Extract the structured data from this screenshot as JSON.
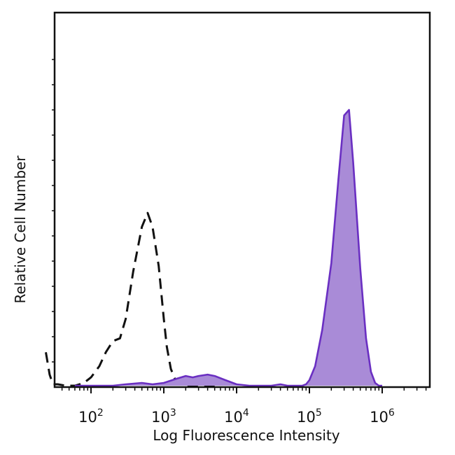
{
  "chart_data": {
    "type": "area",
    "title": "",
    "xlabel": "Log Fluorescence Intensity",
    "ylabel": "Relative Cell Number",
    "xscale": "log",
    "xlim": [
      20,
      4000000
    ],
    "ylim": [
      0,
      1.0
    ],
    "grid": false,
    "legend": "none",
    "xticks": [
      {
        "base": "10",
        "exp": "2",
        "value": 100
      },
      {
        "base": "10",
        "exp": "3",
        "value": 1000
      },
      {
        "base": "10",
        "exp": "4",
        "value": 10000
      },
      {
        "base": "10",
        "exp": "5",
        "value": 100000
      },
      {
        "base": "10",
        "exp": "6",
        "value": 1000000
      }
    ],
    "series": [
      {
        "style": "dashed",
        "color": "#111111",
        "x": [
          24,
          27,
          30,
          35,
          45,
          60,
          80,
          100,
          130,
          160,
          200,
          250,
          300,
          380,
          500,
          600,
          700,
          850,
          1000,
          1100,
          1250,
          1500,
          2000,
          3000,
          5000
        ],
        "y": [
          0.12,
          0.04,
          0.005,
          0.005,
          0.0,
          0.0,
          0.01,
          0.03,
          0.07,
          0.12,
          0.16,
          0.17,
          0.24,
          0.41,
          0.57,
          0.62,
          0.57,
          0.43,
          0.24,
          0.14,
          0.06,
          0.01,
          0.0,
          0.0,
          0.0
        ]
      },
      {
        "style": "filled",
        "color": "#6a2fc2",
        "fill": "#a98bd7",
        "x": [
          60,
          100,
          200,
          300,
          500,
          700,
          1000,
          1500,
          2000,
          2500,
          3000,
          4000,
          5000,
          7000,
          10000,
          15000,
          20000,
          30000,
          40000,
          50000,
          60000,
          70000,
          80000,
          90000,
          100000,
          120000,
          150000,
          200000,
          250000,
          300000,
          350000,
          400000,
          500000,
          600000,
          700000,
          800000,
          900000,
          1000000
        ],
        "y": [
          0.0,
          0.0,
          0.0,
          0.005,
          0.01,
          0.005,
          0.01,
          0.025,
          0.035,
          0.03,
          0.035,
          0.04,
          0.035,
          0.02,
          0.005,
          0.0,
          0.0,
          0.0,
          0.005,
          0.0,
          0.0,
          0.0,
          0.0,
          0.005,
          0.02,
          0.07,
          0.2,
          0.44,
          0.74,
          0.97,
          0.99,
          0.8,
          0.42,
          0.17,
          0.05,
          0.01,
          0.0,
          0.0
        ]
      }
    ]
  }
}
